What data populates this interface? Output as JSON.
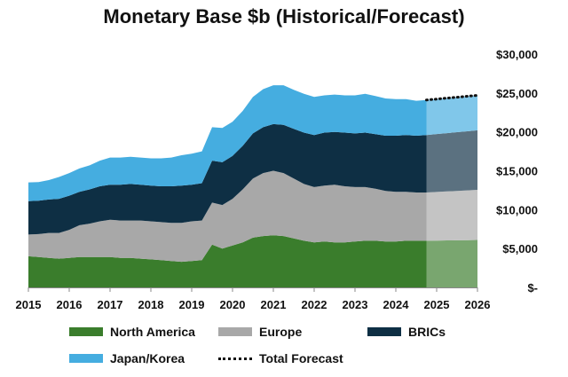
{
  "chart_data": {
    "type": "area",
    "title": "Monetary Base $b (Historical/Forecast)",
    "stacked": true,
    "x_ticks": [
      "2015",
      "2016",
      "2017",
      "2018",
      "2019",
      "2020",
      "2021",
      "2022",
      "2023",
      "2024",
      "2025",
      "2026"
    ],
    "xlim": [
      2015,
      2026
    ],
    "y_ticks": [
      "$-",
      "$5,000",
      "$10,000",
      "$15,000",
      "$20,000",
      "$25,000",
      "$30,000"
    ],
    "ylim": [
      0,
      30000
    ],
    "forecast_start": 2024.75,
    "x": [
      2015.0,
      2015.25,
      2015.5,
      2015.75,
      2016.0,
      2016.25,
      2016.5,
      2016.75,
      2017.0,
      2017.25,
      2017.5,
      2017.75,
      2018.0,
      2018.25,
      2018.5,
      2018.75,
      2019.0,
      2019.25,
      2019.5,
      2019.75,
      2020.0,
      2020.25,
      2020.5,
      2020.75,
      2021.0,
      2021.25,
      2021.5,
      2021.75,
      2022.0,
      2022.25,
      2022.5,
      2022.75,
      2023.0,
      2023.25,
      2023.5,
      2023.75,
      2024.0,
      2024.25,
      2024.5,
      2024.75,
      2025.0,
      2025.25,
      2025.5,
      2025.75,
      2026.0
    ],
    "series": [
      {
        "name": "North America",
        "color": "#3a7d2c",
        "values": [
          4000,
          3900,
          3800,
          3700,
          3800,
          3900,
          3900,
          3900,
          3900,
          3800,
          3800,
          3700,
          3600,
          3500,
          3400,
          3300,
          3400,
          3500,
          5500,
          5000,
          5400,
          5800,
          6400,
          6600,
          6700,
          6600,
          6300,
          6000,
          5800,
          5900,
          5800,
          5800,
          5900,
          6000,
          6000,
          5900,
          5900,
          6000,
          6000,
          6000,
          6020,
          6040,
          6060,
          6080,
          6100
        ]
      },
      {
        "name": "Europe",
        "color": "#a8a8a8",
        "values": [
          2800,
          2950,
          3200,
          3300,
          3600,
          4100,
          4300,
          4600,
          4800,
          4800,
          4800,
          4900,
          4900,
          4900,
          4900,
          5000,
          5100,
          5100,
          5400,
          5600,
          6000,
          6800,
          7600,
          8100,
          8300,
          8100,
          7700,
          7300,
          7100,
          7200,
          7400,
          7200,
          7000,
          6900,
          6700,
          6500,
          6400,
          6300,
          6200,
          6200,
          6250,
          6300,
          6350,
          6400,
          6450
        ]
      },
      {
        "name": "BRICs",
        "color": "#0e2f44",
        "values": [
          4300,
          4300,
          4300,
          4400,
          4400,
          4300,
          4400,
          4500,
          4500,
          4600,
          4700,
          4600,
          4600,
          4600,
          4700,
          4800,
          4700,
          4800,
          5400,
          5500,
          5500,
          5600,
          5800,
          5900,
          6000,
          6200,
          6400,
          6600,
          6700,
          6800,
          6800,
          6900,
          6900,
          7000,
          7000,
          7100,
          7200,
          7300,
          7300,
          7400,
          7450,
          7500,
          7550,
          7600,
          7650
        ]
      },
      {
        "name": "Japan/Korea",
        "color": "#45ade0",
        "values": [
          2400,
          2400,
          2500,
          2800,
          2900,
          3000,
          3100,
          3300,
          3500,
          3500,
          3500,
          3500,
          3500,
          3600,
          3700,
          3900,
          4000,
          4100,
          4300,
          4400,
          4400,
          4500,
          4700,
          4900,
          5000,
          5100,
          5000,
          5000,
          4900,
          4800,
          4800,
          4800,
          4900,
          5000,
          4900,
          4800,
          4700,
          4600,
          4500,
          4500,
          4500,
          4500,
          4500,
          4500,
          4500
        ]
      }
    ],
    "total_forecast": {
      "name": "Total Forecast",
      "color": "#111111",
      "x": [
        2024.75,
        2025.0,
        2025.25,
        2025.5,
        2025.75,
        2026.0
      ],
      "values": [
        24100,
        24220,
        24340,
        24460,
        24580,
        24700
      ]
    }
  },
  "legend": {
    "items": [
      {
        "label": "North America",
        "color": "#3a7d2c",
        "kind": "swatch"
      },
      {
        "label": "Europe",
        "color": "#a8a8a8",
        "kind": "swatch"
      },
      {
        "label": "BRICs",
        "color": "#0e2f44",
        "kind": "swatch"
      },
      {
        "label": "Japan/Korea",
        "color": "#45ade0",
        "kind": "swatch"
      },
      {
        "label": "Total Forecast",
        "color": "#111111",
        "kind": "dots"
      }
    ]
  }
}
